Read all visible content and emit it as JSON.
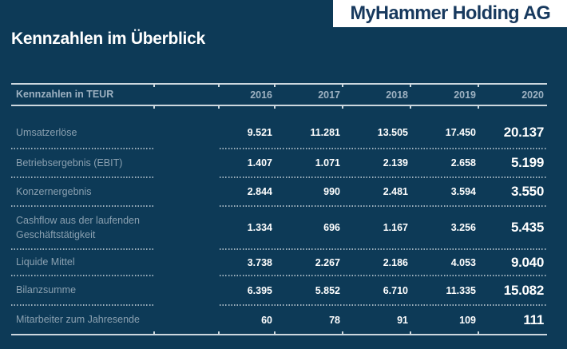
{
  "brand": {
    "logo_text": "MyHammer Holding AG",
    "background_color": "#0d3a57",
    "logo_color": "#17395e",
    "accent_text_color": "#8aa0b0"
  },
  "title": "Kennzahlen im Überblick",
  "table": {
    "header": {
      "label": "Kennzahlen in TEUR",
      "years": [
        "2016",
        "2017",
        "2018",
        "2019",
        "2020"
      ]
    },
    "rows": [
      {
        "label": "Umsatzerlöse",
        "values": [
          "9.521",
          "11.281",
          "13.505",
          "17.450",
          "20.137"
        ]
      },
      {
        "label": "Betriebsergebnis (EBIT)",
        "values": [
          "1.407",
          "1.071",
          "2.139",
          "2.658",
          "5.199"
        ]
      },
      {
        "label": "Konzernergebnis",
        "values": [
          "2.844",
          "990",
          "2.481",
          "3.594",
          "3.550"
        ]
      },
      {
        "label": "Cashflow aus der laufenden Geschäftstätigkeit",
        "values": [
          "1.334",
          "696",
          "1.167",
          "3.256",
          "5.435"
        ]
      },
      {
        "label": "Liquide Mittel",
        "values": [
          "3.738",
          "2.267",
          "2.186",
          "4.053",
          "9.040"
        ]
      },
      {
        "label": "Bilanzsumme",
        "values": [
          "6.395",
          "5.852",
          "6.710",
          "11.335",
          "15.082"
        ]
      },
      {
        "label": "Mitarbeiter zum Jahresende",
        "values": [
          "60",
          "78",
          "91",
          "109",
          "111"
        ]
      }
    ]
  }
}
